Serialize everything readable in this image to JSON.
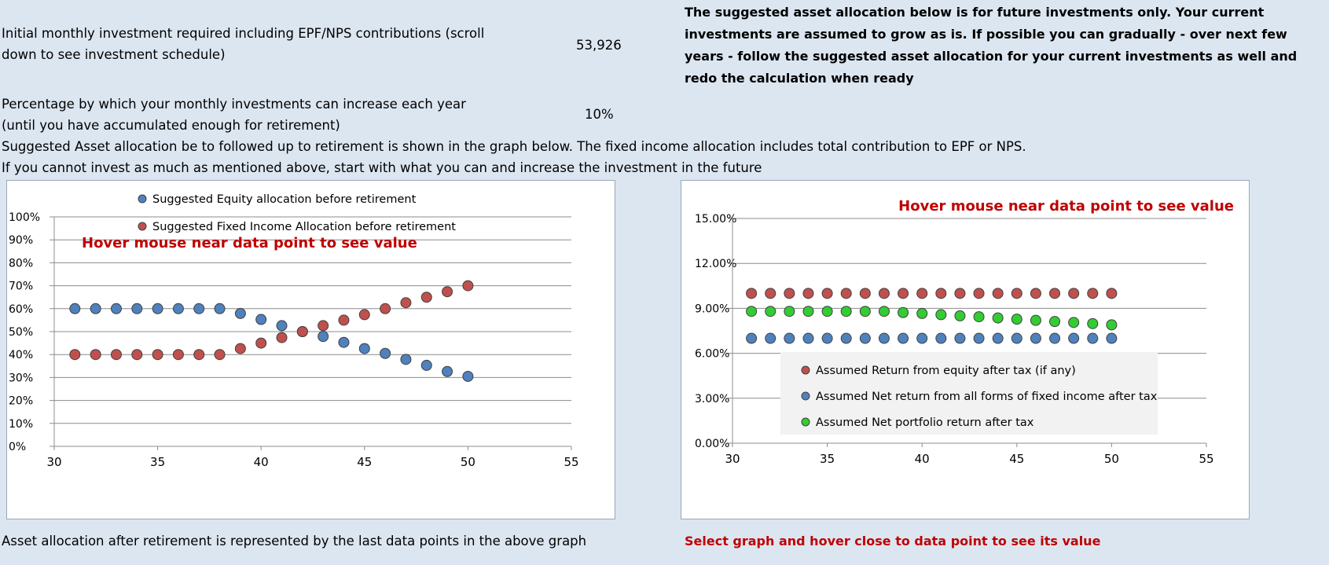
{
  "header": {
    "investment_label_line1": "Initial monthly investment required including EPF/NPS contributions (scroll",
    "investment_label_line2": "down to see investment schedule)",
    "investment_value": "53,926",
    "increase_label_line1": "Percentage by which your monthly investments can increase each year",
    "increase_label_line2": "(until you have accumulated enough for retirement)",
    "increase_value": "10%",
    "note_bold": "The suggested asset allocation below is for future investments only. Your current investments are assumed to grow as is. If possible you can gradually - over next few years - follow the suggested asset allocation for your current investments as well and redo the calculation when ready",
    "allocation_note": "Suggested Asset allocation be to followed up to retirement is shown in the graph below. The fixed income allocation includes total contribution to EPF or NPS.",
    "invest_note": "If you cannot invest as much as mentioned above, start with what you can and increase the investment in the future"
  },
  "footer": {
    "left_note": "Asset allocation after retirement is represented by the last data points in the above graph",
    "right_note": "Select graph and hover close to data point to see its value"
  },
  "colors": {
    "red_marker": "#c0504d",
    "blue_marker": "#4f81bd",
    "green_marker": "#33cc33",
    "hover_text": "#c00000"
  },
  "chart_data": [
    {
      "type": "scatter",
      "annotation": "Hover mouse near data point to see value",
      "xlim": [
        30,
        55
      ],
      "ylim": [
        0,
        100
      ],
      "x_ticks": [
        "30",
        "35",
        "40",
        "45",
        "50",
        "55"
      ],
      "y_ticks": [
        "0%",
        "10%",
        "20%",
        "30%",
        "40%",
        "50%",
        "60%",
        "70%",
        "80%",
        "90%",
        "100%"
      ],
      "legend_position": "top",
      "series": [
        {
          "name": "Suggested Equity allocation before retirement",
          "color": "#4f81bd",
          "x": [
            31,
            32,
            33,
            34,
            35,
            36,
            37,
            38,
            39,
            40,
            41,
            42,
            43,
            44,
            45,
            46,
            47,
            48,
            49,
            50
          ],
          "y": [
            60,
            60,
            60,
            60,
            60,
            60,
            60,
            60,
            57.9,
            55.3,
            52.6,
            50,
            47.9,
            45.3,
            42.6,
            40.5,
            37.9,
            35.3,
            32.6,
            30.5
          ]
        },
        {
          "name": "Suggested Fixed Income Allocation before retirement",
          "color": "#c0504d",
          "x": [
            31,
            32,
            33,
            34,
            35,
            36,
            37,
            38,
            39,
            40,
            41,
            42,
            43,
            44,
            45,
            46,
            47,
            48,
            49,
            50
          ],
          "y": [
            40,
            40,
            40,
            40,
            40,
            40,
            40,
            40,
            42.6,
            45,
            47.4,
            50,
            52.6,
            55,
            57.4,
            60,
            62.6,
            65,
            67.4,
            70
          ]
        }
      ]
    },
    {
      "type": "scatter",
      "annotation": "Hover mouse near data point to see value",
      "xlim": [
        30,
        55
      ],
      "ylim": [
        0,
        15
      ],
      "x_ticks": [
        "30",
        "35",
        "40",
        "45",
        "50",
        "55"
      ],
      "y_ticks": [
        "0.00%",
        "3.00%",
        "6.00%",
        "9.00%",
        "12.00%",
        "15.00%"
      ],
      "legend_position": "bottom-right",
      "series": [
        {
          "name": "Assumed Return from equity after tax (if any)",
          "color": "#c0504d",
          "x": [
            31,
            32,
            33,
            34,
            35,
            36,
            37,
            38,
            39,
            40,
            41,
            42,
            43,
            44,
            45,
            46,
            47,
            48,
            49,
            50
          ],
          "y": [
            10,
            10,
            10,
            10,
            10,
            10,
            10,
            10,
            10,
            10,
            10,
            10,
            10,
            10,
            10,
            10,
            10,
            10,
            10,
            10
          ]
        },
        {
          "name": "Assumed Net return from all forms of fixed income after tax",
          "color": "#4f81bd",
          "x": [
            31,
            32,
            33,
            34,
            35,
            36,
            37,
            38,
            39,
            40,
            41,
            42,
            43,
            44,
            45,
            46,
            47,
            48,
            49,
            50
          ],
          "y": [
            7,
            7,
            7,
            7,
            7,
            7,
            7,
            7,
            7,
            7,
            7,
            7,
            7,
            7,
            7,
            7,
            7,
            7,
            7,
            7
          ]
        },
        {
          "name": "Assumed Net portfolio return after tax",
          "color": "#33cc33",
          "x": [
            31,
            32,
            33,
            34,
            35,
            36,
            37,
            38,
            39,
            40,
            41,
            42,
            43,
            44,
            45,
            46,
            47,
            48,
            49,
            50
          ],
          "y": [
            8.8,
            8.8,
            8.8,
            8.8,
            8.8,
            8.8,
            8.8,
            8.8,
            8.72,
            8.66,
            8.58,
            8.5,
            8.44,
            8.36,
            8.28,
            8.2,
            8.12,
            8.06,
            7.98,
            7.9
          ]
        }
      ]
    }
  ]
}
